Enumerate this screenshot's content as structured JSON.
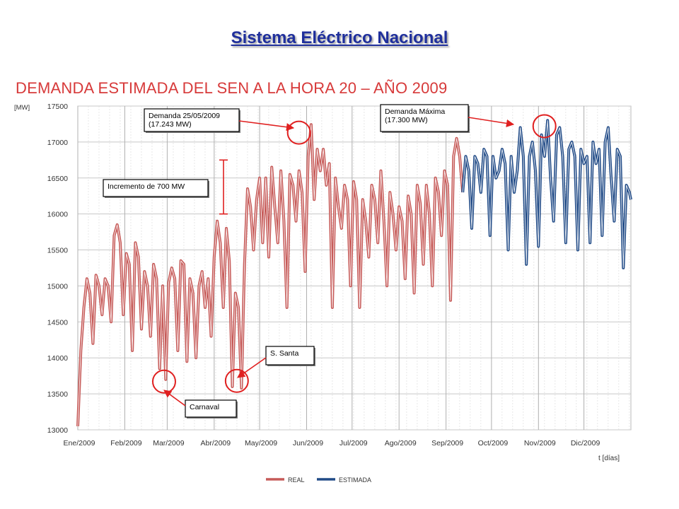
{
  "slide_title": "Sistema  Eléctrico Nacional",
  "colors": {
    "real": "#c65a58",
    "estimada": "#214b87",
    "annotation": "#e02020",
    "title_blue": "#1f2f9c",
    "chart_title_red": "#d73a3a"
  },
  "chart_data": {
    "type": "line",
    "title": "DEMANDA ESTIMADA DEL SEN A LA HORA 20 – AÑO 2009",
    "ylabel": "[MW]",
    "xlabel": "t [días]",
    "ylim": [
      13000,
      17500
    ],
    "xlim": [
      0,
      365
    ],
    "y_ticks": [
      13000,
      13500,
      14000,
      14500,
      15000,
      15500,
      16000,
      16500,
      17000,
      17500
    ],
    "y_tick_labels": [
      "13000",
      "13500",
      "14000",
      "14500",
      "15000",
      "15500",
      "16000",
      "16500",
      "17000",
      "17500"
    ],
    "x_ticks": [
      0,
      31,
      59,
      90,
      120,
      151,
      181,
      212,
      243,
      273,
      304,
      334
    ],
    "x_tick_labels": [
      "Ene/2009",
      "Feb/2009",
      "Mar/2009",
      "Abr/2009",
      "May/2009",
      "Jun/2009",
      "Jul/2009",
      "Ago/2009",
      "Sep/2009",
      "Oct/2009",
      "Nov/2009",
      "Dic/2009"
    ],
    "grid": true,
    "legend_position": "bottom",
    "series": [
      {
        "name": "REAL",
        "color": "#c65a58",
        "x": [
          0,
          2,
          4,
          6,
          8,
          10,
          12,
          14,
          16,
          18,
          20,
          22,
          24,
          26,
          28,
          30,
          32,
          34,
          36,
          38,
          40,
          42,
          44,
          46,
          48,
          50,
          52,
          54,
          56,
          58,
          60,
          62,
          64,
          66,
          68,
          70,
          72,
          74,
          76,
          78,
          80,
          82,
          84,
          86,
          88,
          90,
          92,
          94,
          96,
          98,
          100,
          102,
          104,
          106,
          108,
          110,
          112,
          114,
          116,
          118,
          120,
          122,
          124,
          126,
          128,
          130,
          132,
          134,
          136,
          138,
          140,
          142,
          144,
          146,
          148,
          150,
          152,
          154,
          156,
          158,
          160,
          162,
          164,
          166,
          168,
          170,
          172,
          174,
          176,
          178,
          180,
          182,
          184,
          186,
          188,
          190,
          192,
          194,
          196,
          198,
          200,
          202,
          204,
          206,
          208,
          210,
          212,
          214,
          216,
          218,
          220,
          222,
          224,
          226,
          228,
          230,
          232,
          234,
          236,
          238,
          240,
          242,
          244,
          246,
          248,
          250,
          252,
          254
        ],
        "values": [
          13050,
          14100,
          14700,
          15100,
          14900,
          14200,
          15150,
          15000,
          14600,
          15100,
          15000,
          14500,
          15700,
          15850,
          15600,
          14600,
          15450,
          15300,
          14100,
          15600,
          15400,
          14400,
          15200,
          15000,
          14300,
          15300,
          15100,
          13850,
          15000,
          13700,
          15050,
          15250,
          15100,
          14100,
          15350,
          15300,
          13950,
          15100,
          14900,
          14000,
          15000,
          15200,
          14700,
          15100,
          14300,
          15400,
          15900,
          15600,
          14700,
          15800,
          15350,
          13600,
          14900,
          14700,
          13580,
          15300,
          16350,
          16100,
          15500,
          16200,
          16500,
          15600,
          16500,
          15400,
          16650,
          16100,
          15600,
          16600,
          15900,
          14700,
          16550,
          16400,
          15900,
          16600,
          16300,
          15200,
          16800,
          17243,
          16200,
          16900,
          16600,
          16900,
          16400,
          16700,
          14700,
          16500,
          16100,
          15800,
          16400,
          16200,
          15000,
          16450,
          16200,
          14700,
          16200,
          15900,
          15400,
          16400,
          16200,
          15600,
          16600,
          15900,
          15000,
          16300,
          16000,
          15500,
          16100,
          15900,
          15100,
          16250,
          16000,
          14900,
          16400,
          16150,
          15300,
          16400,
          16000,
          15000,
          16500,
          16300,
          15700,
          16600,
          16400,
          14800,
          16800,
          17050,
          16800,
          16300
        ]
      },
      {
        "name": "ESTIMADA",
        "color": "#214b87",
        "x": [
          254,
          256,
          258,
          260,
          262,
          264,
          266,
          268,
          270,
          272,
          274,
          276,
          278,
          280,
          282,
          284,
          286,
          288,
          290,
          292,
          294,
          296,
          298,
          300,
          302,
          304,
          306,
          308,
          310,
          312,
          314,
          316,
          318,
          320,
          322,
          324,
          326,
          328,
          330,
          332,
          334,
          336,
          338,
          340,
          342,
          344,
          346,
          348,
          350,
          352,
          354,
          356,
          358,
          360,
          362,
          364,
          365
        ],
        "values": [
          16300,
          16800,
          16600,
          15800,
          16800,
          16700,
          16300,
          16900,
          16800,
          15700,
          16800,
          16500,
          16600,
          16900,
          16700,
          15500,
          16800,
          16300,
          16600,
          17200,
          16800,
          15300,
          16800,
          17000,
          16600,
          15550,
          17100,
          16800,
          17300,
          16500,
          15900,
          17100,
          17200,
          16800,
          15600,
          16900,
          17000,
          16800,
          15500,
          16900,
          16700,
          16800,
          15600,
          17000,
          16700,
          16900,
          15700,
          17000,
          17200,
          16500,
          15900,
          16900,
          16800,
          15250,
          16400,
          16300,
          16200
        ]
      }
    ],
    "annotations": [
      {
        "text_lines": [
          "Demanda 25/05/2009",
          "(17.243 MW)"
        ],
        "x": 145,
        "y": 17170
      },
      {
        "text_lines": [
          "Demanda Máxima",
          "(17.300 MW)"
        ],
        "x": 307,
        "y": 17250
      },
      {
        "text_lines": [
          "Incremento de 700 MW"
        ],
        "x": 103,
        "y": 16350
      },
      {
        "text_lines": [
          "S. Santa"
        ],
        "x": 104,
        "y": 13700
      },
      {
        "text_lines": [
          "Carnaval"
        ],
        "x": 56,
        "y": 13700
      }
    ]
  }
}
